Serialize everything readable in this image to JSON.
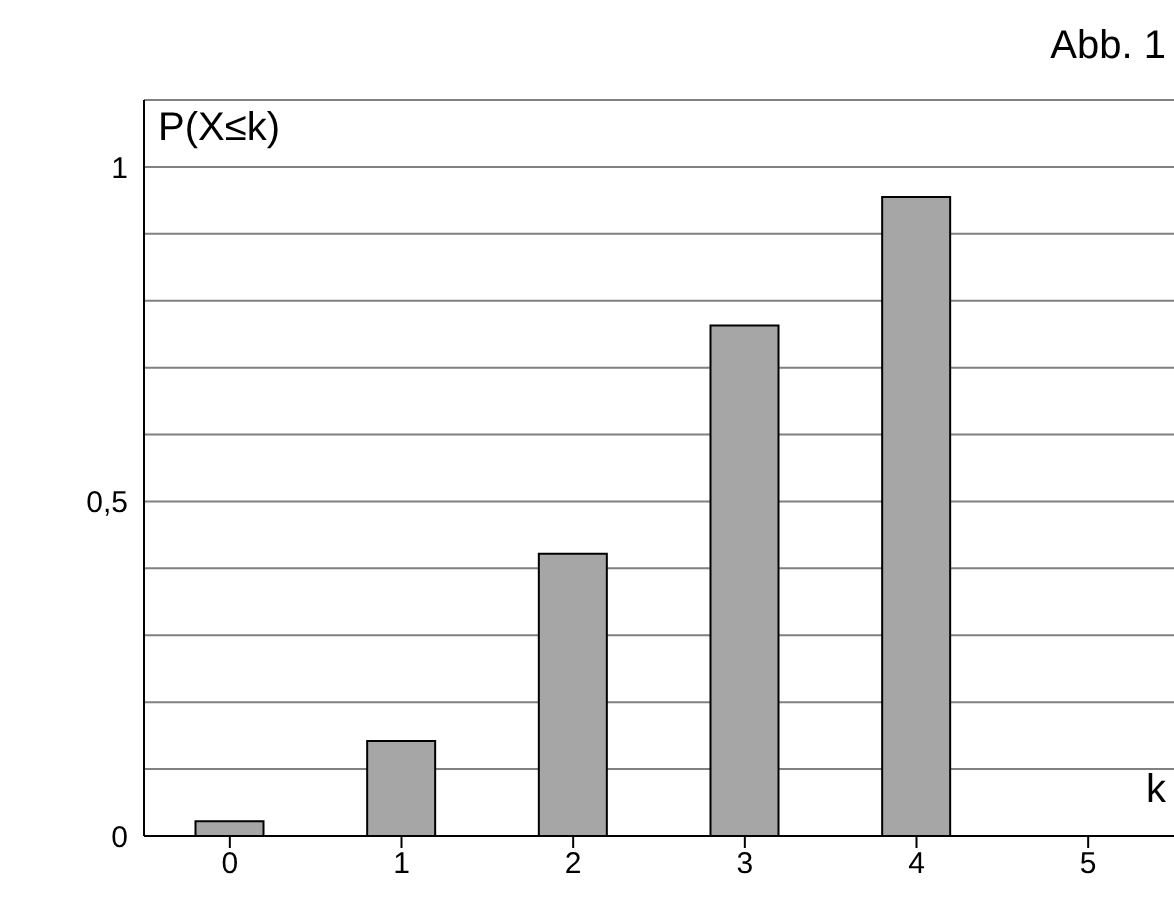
{
  "chart_data": {
    "type": "bar",
    "title": "Abb. 1",
    "xlabel": "k",
    "ylabel": "P(X≤k)",
    "categories": [
      "0",
      "1",
      "2",
      "3",
      "4",
      "5"
    ],
    "values": [
      0.022,
      0.142,
      0.422,
      0.763,
      0.955,
      null
    ],
    "color": "#a6a6a6",
    "ylim": [
      0,
      1.1
    ],
    "yticks": [
      0,
      {
        "value": 0.1,
        "label": null
      },
      {
        "value": 0.2,
        "label": null
      },
      {
        "value": 0.3,
        "label": null
      },
      {
        "value": 0.4,
        "label": null
      },
      {
        "value": 0.5,
        "label": "0,5"
      },
      {
        "value": 0.6,
        "label": null
      },
      {
        "value": 0.7,
        "label": null
      },
      {
        "value": 0.8,
        "label": null
      },
      {
        "value": 0.9,
        "label": null
      },
      1,
      {
        "value": 1.1,
        "label": null
      }
    ],
    "grid": "y"
  }
}
